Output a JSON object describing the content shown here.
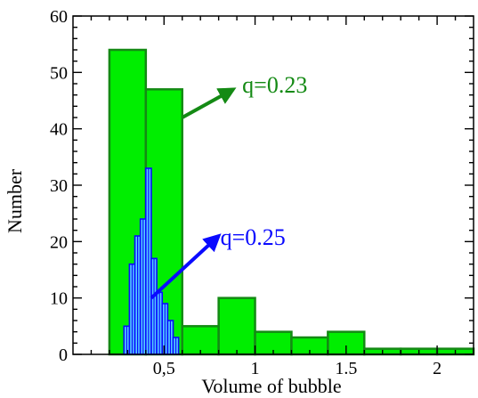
{
  "chart_data": {
    "type": "bar",
    "title": "",
    "xlabel": "Volume of bubble",
    "ylabel": "Number",
    "xlim": [
      0,
      2.2
    ],
    "ylim": [
      0,
      60
    ],
    "grid": false,
    "x_ticks": [
      {
        "value": 0.5,
        "label": "0,5"
      },
      {
        "value": 1,
        "label": "1"
      },
      {
        "value": 1.5,
        "label": "1.5"
      },
      {
        "value": 2,
        "label": "2"
      }
    ],
    "y_ticks": [
      {
        "value": 0,
        "label": "0"
      },
      {
        "value": 10,
        "label": "10"
      },
      {
        "value": 20,
        "label": "20"
      },
      {
        "value": 30,
        "label": "30"
      },
      {
        "value": 40,
        "label": "40"
      },
      {
        "value": 50,
        "label": "50"
      },
      {
        "value": 60,
        "label": "60"
      }
    ],
    "series": [
      {
        "style": "solid",
        "fill": "#00ee00",
        "stroke": "#148a14",
        "bins": [
          {
            "x0": 0.2,
            "x1": 0.4,
            "value": 54
          },
          {
            "x0": 0.4,
            "x1": 0.6,
            "value": 47
          },
          {
            "x0": 0.6,
            "x1": 0.8,
            "value": 5
          },
          {
            "x0": 0.8,
            "x1": 1.0,
            "value": 10
          },
          {
            "x0": 1.0,
            "x1": 1.2,
            "value": 4
          },
          {
            "x0": 1.2,
            "x1": 1.4,
            "value": 3
          },
          {
            "x0": 1.4,
            "x1": 1.6,
            "value": 4
          },
          {
            "x0": 1.6,
            "x1": 1.8,
            "value": 1
          },
          {
            "x0": 1.8,
            "x1": 2.0,
            "value": 1
          },
          {
            "x0": 2.0,
            "x1": 2.2,
            "value": 1
          }
        ]
      },
      {
        "style": "hatched",
        "fill": "#55ccff",
        "stroke": "#0a0aff",
        "bins": [
          {
            "x0": 0.28,
            "x1": 0.31,
            "value": 5
          },
          {
            "x0": 0.31,
            "x1": 0.34,
            "value": 16
          },
          {
            "x0": 0.34,
            "x1": 0.37,
            "value": 21
          },
          {
            "x0": 0.37,
            "x1": 0.4,
            "value": 24
          },
          {
            "x0": 0.4,
            "x1": 0.43,
            "value": 33
          },
          {
            "x0": 0.43,
            "x1": 0.46,
            "value": 17
          },
          {
            "x0": 0.46,
            "x1": 0.49,
            "value": 11
          },
          {
            "x0": 0.49,
            "x1": 0.52,
            "value": 9
          },
          {
            "x0": 0.52,
            "x1": 0.55,
            "value": 6
          },
          {
            "x0": 0.55,
            "x1": 0.58,
            "value": 3
          }
        ]
      }
    ],
    "annotations": [
      {
        "text": "q=0.23",
        "color": "#148a14",
        "text_x": 0.92,
        "text_y": 48,
        "arrow_from": [
          0.6,
          42
        ],
        "arrow_to": [
          0.88,
          47
        ]
      },
      {
        "text": "q=0.25",
        "color": "#0a0aff",
        "text_x": 0.8,
        "text_y": 21,
        "arrow_from": [
          0.43,
          10
        ],
        "arrow_to": [
          0.8,
          21
        ]
      }
    ]
  }
}
